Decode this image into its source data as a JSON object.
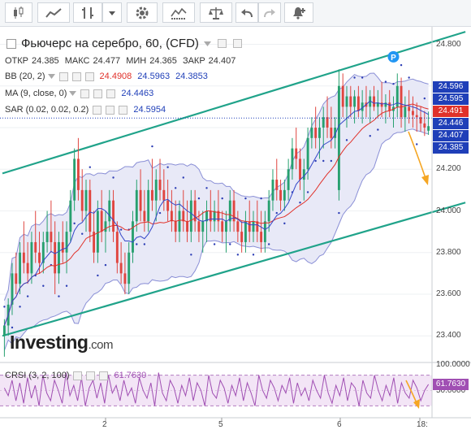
{
  "toolbar": {
    "buttons": [
      {
        "name": "candles-type-button",
        "icon": "candlestick-icon"
      },
      {
        "name": "line-type-button",
        "icon": "line-chart-icon"
      },
      {
        "name": "bars-type-button",
        "icon": "ohlc-bars-icon"
      },
      {
        "name": "chart-type-dropdown",
        "icon": "caret-down-icon"
      },
      {
        "name": "settings-button",
        "icon": "gear-icon"
      },
      {
        "name": "indicators-button",
        "icon": "indicator-icon"
      },
      {
        "name": "compare-button",
        "icon": "scales-icon"
      },
      {
        "name": "undo-button",
        "icon": "undo-icon"
      },
      {
        "name": "redo-button",
        "icon": "redo-icon"
      },
      {
        "name": "alerts-button",
        "icon": "bell-plus-icon"
      }
    ]
  },
  "header": {
    "title": "Фьючерс на серебро, 60, (CFD)",
    "ohlc": [
      {
        "label": "ОТКР",
        "value": "24.385"
      },
      {
        "label": "МАКС",
        "value": "24.477"
      },
      {
        "label": "МИН",
        "value": "24.365"
      },
      {
        "label": "ЗАКР",
        "value": "24.407"
      }
    ]
  },
  "indicators": {
    "bb": {
      "label": "BB (20, 2)",
      "values": [
        "24.4908",
        "24.5963",
        "24.3853"
      ],
      "colors": [
        "#e0312a",
        "#1f3fb8",
        "#1f3fb8"
      ]
    },
    "ma": {
      "label": "MA (9, close, 0)",
      "value": "24.4463",
      "color": "#1f3fb8"
    },
    "sar": {
      "label": "SAR (0.02, 0.02, 0.2)",
      "value": "24.5954",
      "color": "#1f3fb8"
    },
    "crsi": {
      "label": "CRSI (3, 2, 100)",
      "value": "61.7630",
      "color": "#a04fb3"
    }
  },
  "branding": {
    "logo_text": "Investing",
    "logo_suffix": ".com"
  },
  "marker": {
    "label": "P"
  },
  "colors": {
    "up": "#27a06f",
    "down": "#e0453f",
    "channel": "#20a38a",
    "band_fill": "#e8e9f7",
    "band_line": "#8a8fd6",
    "ma_line": "#3346c8",
    "bb_mid": "#e0312a",
    "sar": "#2d3eb5",
    "annotation": "#f5a623",
    "crsi_line": "#a04fb3",
    "crsi_fill": "#f3e5f6"
  },
  "chart_data": {
    "type": "candlestick",
    "y_axis": {
      "min": 23.28,
      "max": 24.88,
      "ticks": [
        "24.800",
        "24.600",
        "24.400",
        "24.200",
        "24.000",
        "23.800",
        "23.600",
        "23.400"
      ]
    },
    "x_axis": {
      "ticks": [
        "2",
        "5",
        "6",
        "18:"
      ]
    },
    "price_labels": [
      {
        "value": "24.596",
        "bg": "#1f3fb8",
        "fg": "#ffffff"
      },
      {
        "value": "24.595",
        "bg": "#1f3fb8",
        "fg": "#ffffff"
      },
      {
        "value": "24.491",
        "bg": "#e0312a",
        "fg": "#ffffff"
      },
      {
        "value": "24.446",
        "bg": "#1f3fb8",
        "fg": "#ffffff"
      },
      {
        "value": "24.407",
        "bg": "#1f3fb8",
        "fg": "#ffffff"
      },
      {
        "value": "24.385",
        "bg": "#1f3fb8",
        "fg": "#ffffff"
      }
    ],
    "current_price": 24.446,
    "channel": {
      "upper": [
        [
          0,
          24.18
        ],
        [
          119,
          24.86
        ]
      ],
      "lower": [
        [
          0,
          23.4
        ],
        [
          119,
          24.04
        ]
      ]
    },
    "candles": [
      [
        23.4,
        23.48,
        23.3,
        23.45
      ],
      [
        23.45,
        23.58,
        23.4,
        23.55
      ],
      [
        23.55,
        23.75,
        23.5,
        23.7
      ],
      [
        23.7,
        23.8,
        23.6,
        23.65
      ],
      [
        23.65,
        23.85,
        23.6,
        23.8
      ],
      [
        23.8,
        23.95,
        23.7,
        23.75
      ],
      [
        23.75,
        23.85,
        23.65,
        23.7
      ],
      [
        23.7,
        23.9,
        23.65,
        23.85
      ],
      [
        23.85,
        24.0,
        23.75,
        23.8
      ],
      [
        23.8,
        23.9,
        23.7,
        23.75
      ],
      [
        23.75,
        23.9,
        23.7,
        23.85
      ],
      [
        23.85,
        24.0,
        23.8,
        23.9
      ],
      [
        23.9,
        24.05,
        23.8,
        23.85
      ],
      [
        23.85,
        23.95,
        23.6,
        23.7
      ],
      [
        23.7,
        23.9,
        23.65,
        23.85
      ],
      [
        23.85,
        23.95,
        23.75,
        23.8
      ],
      [
        23.8,
        23.95,
        23.7,
        23.9
      ],
      [
        23.9,
        24.1,
        23.85,
        24.05
      ],
      [
        24.05,
        24.3,
        24.0,
        24.25
      ],
      [
        24.25,
        24.35,
        24.05,
        24.1
      ],
      [
        24.1,
        24.2,
        23.95,
        24.0
      ],
      [
        24.0,
        24.15,
        23.9,
        24.1
      ],
      [
        24.1,
        24.15,
        23.85,
        23.9
      ],
      [
        23.9,
        24.0,
        23.75,
        23.8
      ],
      [
        23.8,
        24.05,
        23.75,
        24.0
      ],
      [
        24.0,
        24.1,
        23.85,
        23.9
      ],
      [
        23.9,
        24.0,
        23.8,
        23.95
      ],
      [
        23.95,
        24.1,
        23.9,
        24.05
      ],
      [
        24.05,
        24.1,
        23.85,
        23.9
      ],
      [
        23.9,
        23.95,
        23.7,
        23.75
      ],
      [
        23.75,
        23.85,
        23.65,
        23.7
      ],
      [
        23.7,
        23.8,
        23.6,
        23.65
      ],
      [
        23.65,
        23.85,
        23.6,
        23.8
      ],
      [
        23.8,
        24.0,
        23.75,
        23.95
      ],
      [
        23.95,
        24.15,
        23.9,
        24.1
      ],
      [
        24.1,
        24.2,
        23.95,
        24.0
      ],
      [
        24.0,
        24.1,
        23.9,
        23.95
      ],
      [
        23.95,
        24.15,
        23.9,
        24.1
      ],
      [
        24.1,
        24.25,
        24.0,
        24.05
      ],
      [
        24.05,
        24.2,
        23.95,
        24.15
      ],
      [
        24.15,
        24.25,
        24.05,
        24.1
      ],
      [
        24.1,
        24.2,
        24.0,
        24.05
      ],
      [
        24.05,
        24.15,
        23.95,
        24.0
      ],
      [
        24.0,
        24.1,
        23.9,
        23.95
      ],
      [
        23.95,
        24.05,
        23.85,
        23.9
      ],
      [
        23.9,
        24.05,
        23.85,
        24.0
      ],
      [
        24.0,
        24.1,
        23.9,
        23.95
      ],
      [
        23.95,
        24.05,
        23.85,
        23.9
      ],
      [
        23.9,
        24.1,
        23.85,
        24.05
      ],
      [
        24.05,
        24.1,
        23.9,
        23.95
      ],
      [
        23.95,
        24.0,
        23.85,
        23.9
      ],
      [
        23.9,
        24.0,
        23.8,
        23.95
      ],
      [
        23.95,
        24.05,
        23.85,
        24.0
      ],
      [
        24.0,
        24.1,
        23.9,
        23.95
      ],
      [
        23.95,
        24.05,
        23.9,
        24.0
      ],
      [
        24.0,
        24.1,
        23.9,
        23.95
      ],
      [
        23.95,
        24.0,
        23.85,
        23.9
      ],
      [
        23.9,
        24.0,
        23.8,
        23.95
      ],
      [
        23.95,
        24.1,
        23.9,
        24.05
      ],
      [
        24.05,
        24.1,
        23.9,
        23.95
      ],
      [
        23.95,
        24.0,
        23.85,
        23.9
      ],
      [
        23.9,
        23.95,
        23.8,
        23.85
      ],
      [
        23.85,
        24.0,
        23.8,
        23.95
      ],
      [
        23.95,
        24.05,
        23.85,
        23.9
      ],
      [
        23.9,
        24.0,
        23.85,
        23.95
      ],
      [
        23.95,
        24.05,
        23.85,
        23.9
      ],
      [
        23.9,
        24.0,
        23.8,
        23.85
      ],
      [
        23.85,
        24.0,
        23.8,
        23.95
      ],
      [
        23.95,
        24.1,
        23.9,
        24.05
      ],
      [
        24.05,
        24.2,
        24.0,
        24.15
      ],
      [
        24.15,
        24.25,
        24.05,
        24.1
      ],
      [
        24.1,
        24.15,
        24.0,
        24.05
      ],
      [
        24.05,
        24.15,
        24.0,
        24.1
      ],
      [
        24.1,
        24.25,
        24.05,
        24.2
      ],
      [
        24.2,
        24.35,
        24.15,
        24.3
      ],
      [
        24.3,
        24.4,
        24.2,
        24.25
      ],
      [
        24.25,
        24.3,
        24.1,
        24.15
      ],
      [
        24.15,
        24.25,
        24.05,
        24.2
      ],
      [
        24.2,
        24.4,
        24.15,
        24.35
      ],
      [
        24.35,
        24.45,
        24.3,
        24.4
      ],
      [
        24.4,
        24.5,
        24.3,
        24.35
      ],
      [
        24.35,
        24.45,
        24.25,
        24.4
      ],
      [
        24.4,
        24.5,
        24.3,
        24.45
      ],
      [
        24.45,
        24.55,
        24.35,
        24.4
      ],
      [
        24.4,
        24.5,
        24.3,
        24.35
      ],
      [
        24.35,
        24.45,
        24.3,
        24.4
      ],
      [
        24.1,
        24.68,
        24.05,
        24.6
      ],
      [
        24.6,
        24.66,
        24.45,
        24.5
      ],
      [
        24.5,
        24.6,
        24.4,
        24.55
      ],
      [
        24.55,
        24.6,
        24.45,
        24.5
      ],
      [
        24.5,
        24.58,
        24.42,
        24.55
      ],
      [
        24.55,
        24.6,
        24.45,
        24.48
      ],
      [
        24.48,
        24.58,
        24.42,
        24.52
      ],
      [
        24.52,
        24.6,
        24.45,
        24.5
      ],
      [
        24.5,
        24.58,
        24.42,
        24.55
      ],
      [
        24.55,
        24.6,
        24.48,
        24.5
      ],
      [
        24.5,
        24.58,
        24.45,
        24.52
      ],
      [
        24.52,
        24.62,
        24.45,
        24.5
      ],
      [
        24.5,
        24.56,
        24.42,
        24.52
      ],
      [
        24.52,
        24.58,
        24.45,
        24.48
      ],
      [
        24.48,
        24.55,
        24.4,
        24.5
      ],
      [
        24.5,
        24.66,
        24.45,
        24.6
      ],
      [
        24.6,
        24.64,
        24.4,
        24.45
      ],
      [
        24.45,
        24.55,
        24.38,
        24.5
      ],
      [
        24.5,
        24.58,
        24.42,
        24.48
      ],
      [
        24.48,
        24.55,
        24.4,
        24.46
      ],
      [
        24.46,
        24.52,
        24.38,
        24.45
      ],
      [
        24.45,
        24.5,
        24.38,
        24.42
      ],
      [
        24.42,
        24.48,
        24.36,
        24.4
      ],
      [
        24.385,
        24.477,
        24.365,
        24.407
      ]
    ],
    "crsi": {
      "min": 0,
      "max": 100,
      "ticks": [
        "100.0000",
        "50.0000"
      ],
      "bands": [
        80,
        20
      ],
      "values": [
        55,
        40,
        70,
        30,
        65,
        25,
        75,
        35,
        60,
        20,
        80,
        45,
        30,
        70,
        50,
        25,
        85,
        40,
        60,
        30,
        75,
        20,
        55,
        70,
        35,
        65,
        25,
        80,
        45,
        60,
        30,
        70,
        40,
        55,
        25,
        75,
        50,
        35,
        65,
        20,
        85,
        45,
        30,
        70,
        55,
        25,
        60,
        40,
        75,
        30,
        65,
        50,
        20,
        80,
        45,
        35,
        70,
        55,
        25,
        60,
        40,
        75,
        30,
        65,
        45,
        20,
        80,
        50,
        35,
        70,
        55,
        30,
        60,
        45,
        75,
        25,
        65,
        40,
        55,
        30,
        70,
        50,
        35,
        80,
        45,
        25,
        60,
        40,
        75,
        30,
        65,
        55,
        20,
        70,
        45,
        35,
        80,
        50,
        30,
        60,
        40,
        75,
        25,
        65,
        45,
        35,
        70,
        55,
        30,
        50,
        62
      ]
    }
  }
}
